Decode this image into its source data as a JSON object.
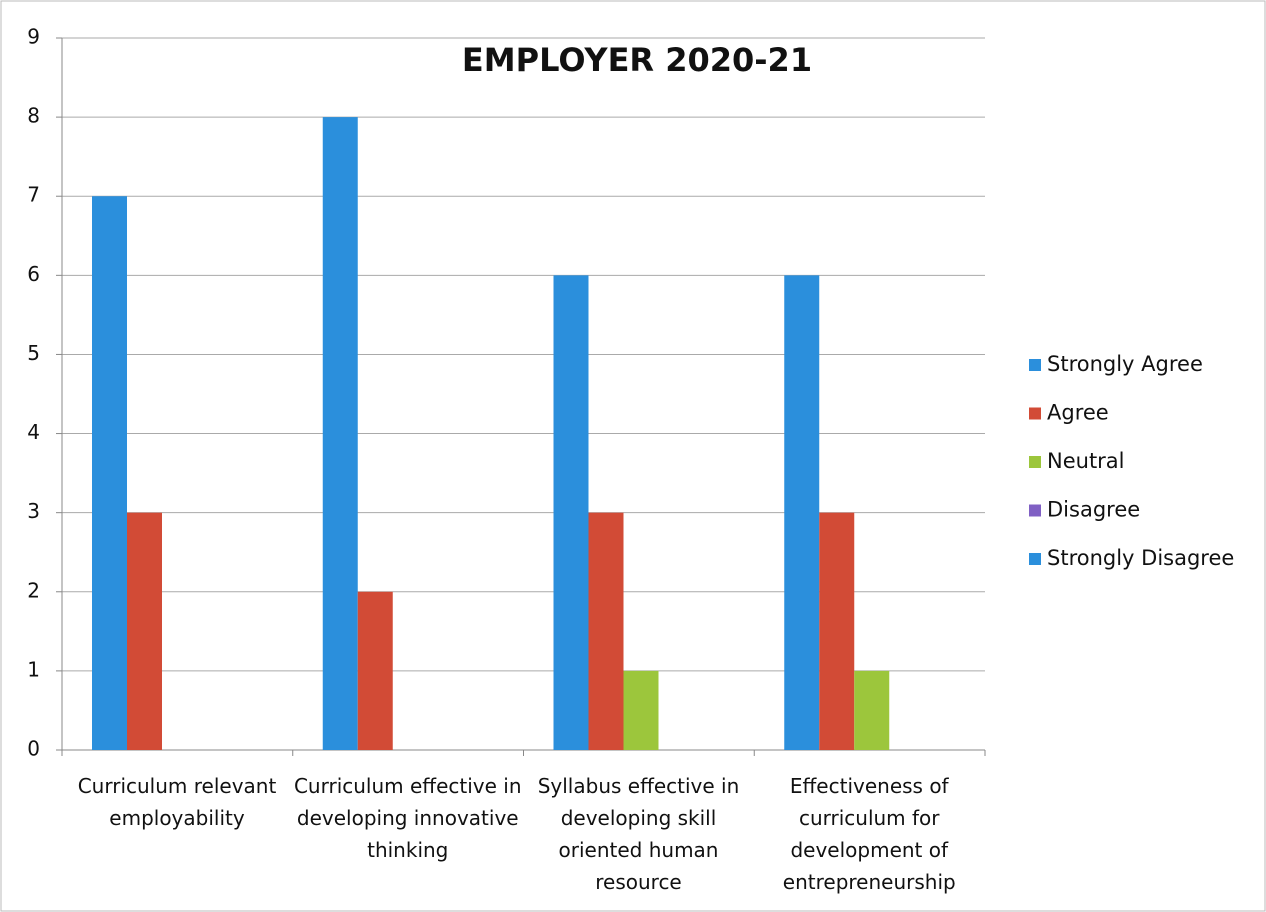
{
  "chart_data": {
    "type": "bar",
    "title": "EMPLOYER 2020-21",
    "categories": [
      "Curriculum relevant employability",
      "Curriculum effective in developing innovative thinking",
      "Syllabus effective in developing skill oriented human resource",
      "Effectiveness of curriculum for development of entrepreneurship"
    ],
    "series": [
      {
        "name": "Strongly Agree",
        "color": "#2b8fdc",
        "values": [
          7,
          8,
          6,
          6
        ]
      },
      {
        "name": "Agree",
        "color": "#d24b36",
        "values": [
          3,
          2,
          3,
          3
        ]
      },
      {
        "name": "Neutral",
        "color": "#9cc63c",
        "values": [
          0,
          0,
          1,
          1
        ]
      },
      {
        "name": "Disagree",
        "color": "#8060c4",
        "values": [
          0,
          0,
          0,
          0
        ]
      },
      {
        "name": "Strongly Disagree",
        "color": "#2b8fdc",
        "values": [
          0,
          0,
          0,
          0
        ]
      }
    ],
    "ylim": [
      0,
      9
    ],
    "yticks": [
      0,
      1,
      2,
      3,
      4,
      5,
      6,
      7,
      8,
      9
    ],
    "grid": true,
    "legend": "right"
  }
}
